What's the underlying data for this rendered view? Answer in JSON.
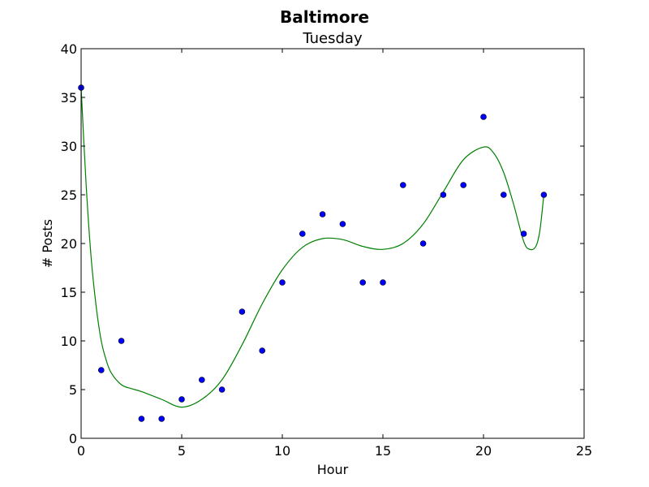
{
  "chart_data": {
    "type": "scatter",
    "title": "Baltimore",
    "subtitle": "Tuesday",
    "xlabel": "Hour",
    "ylabel": "# Posts",
    "xlim": [
      0,
      25
    ],
    "ylim": [
      0,
      40
    ],
    "xticks": [
      "0",
      "5",
      "10",
      "15",
      "20",
      "25"
    ],
    "yticks": [
      "0",
      "5",
      "10",
      "15",
      "20",
      "25",
      "30",
      "35",
      "40"
    ],
    "grid": false,
    "points": {
      "x": [
        0,
        1,
        2,
        3,
        4,
        5,
        6,
        7,
        8,
        9,
        10,
        11,
        12,
        13,
        14,
        15,
        16,
        17,
        18,
        19,
        20,
        21,
        22,
        23
      ],
      "y": [
        36,
        7,
        10,
        2,
        2,
        4,
        6,
        5,
        13,
        9,
        16,
        21,
        23,
        22,
        16,
        16,
        26,
        20,
        25,
        26,
        33,
        25,
        21,
        25
      ],
      "color": "#0000ff"
    },
    "fit_curve": {
      "color": "#008000",
      "x": [
        0,
        0.25,
        0.5,
        0.75,
        1,
        1.25,
        1.5,
        2,
        2.5,
        3,
        4,
        5,
        6,
        7,
        8,
        9,
        10,
        11,
        12,
        13,
        14,
        15,
        16,
        17,
        18,
        19,
        20,
        20.5,
        21,
        21.5,
        22,
        22.3,
        22.6,
        22.8,
        23
      ],
      "y": [
        36,
        26,
        18.5,
        13.5,
        10,
        8,
        6.7,
        5.5,
        5.1,
        4.8,
        4.0,
        3.2,
        4.0,
        6.0,
        9.6,
        13.8,
        17.3,
        19.6,
        20.5,
        20.4,
        19.7,
        19.4,
        20.0,
        22.0,
        25.3,
        28.6,
        29.9,
        29.3,
        27.3,
        24.0,
        20.2,
        19.4,
        19.7,
        21.3,
        25.0
      ]
    }
  }
}
